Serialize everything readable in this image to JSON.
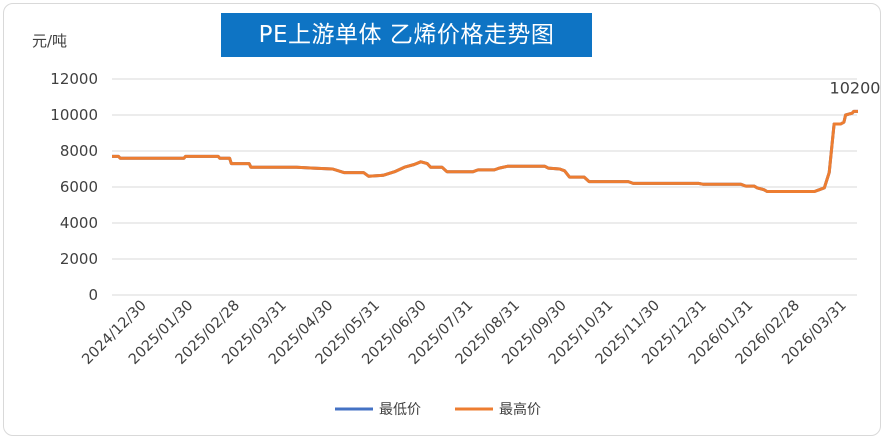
{
  "chart_data": {
    "type": "line",
    "title": "PE上游单体  乙烯价格走势图",
    "ylabel": "元/吨",
    "xlabel": "",
    "ylim": [
      0,
      12000
    ],
    "yticks": [
      0,
      2000,
      4000,
      6000,
      8000,
      10000,
      12000
    ],
    "ytick_labels": [
      "0",
      "2000",
      "4000",
      "6000",
      "8000",
      "10000",
      "12000"
    ],
    "x_tick_labels": [
      "2024/12/30",
      "2025/01/30",
      "2025/02/28",
      "2025/03/31",
      "2025/04/30",
      "2025/05/31",
      "2025/06/30",
      "2025/07/31",
      "2025/08/31",
      "2025/09/30",
      "2025/10/31",
      "2025/11/30",
      "2025/12/31",
      "2026/01/31",
      "2026/02/28",
      "2026/03/31"
    ],
    "xlim": [
      "2024-12-30",
      "2026-03-31"
    ],
    "grid": "horizontal",
    "legend_position": "bottom",
    "series": [
      {
        "name": "最低价",
        "color": "#4472c4",
        "points": [
          [
            "2024-12-30",
            7700
          ],
          [
            "2025-01-03",
            7700
          ],
          [
            "2025-01-04",
            7600
          ],
          [
            "2025-02-12",
            7600
          ],
          [
            "2025-02-13",
            7700
          ],
          [
            "2025-03-05",
            7700
          ],
          [
            "2025-03-06",
            7600
          ],
          [
            "2025-03-12",
            7600
          ],
          [
            "2025-03-13",
            7300
          ],
          [
            "2025-03-24",
            7300
          ],
          [
            "2025-03-25",
            7100
          ],
          [
            "2025-04-22",
            7100
          ],
          [
            "2025-05-02",
            7050
          ],
          [
            "2025-05-14",
            7000
          ],
          [
            "2025-05-21",
            6800
          ],
          [
            "2025-06-02",
            6800
          ],
          [
            "2025-06-05",
            6600
          ],
          [
            "2025-06-14",
            6650
          ],
          [
            "2025-06-21",
            6850
          ],
          [
            "2025-06-27",
            7100
          ],
          [
            "2025-07-03",
            7250
          ],
          [
            "2025-07-07",
            7400
          ],
          [
            "2025-07-11",
            7300
          ],
          [
            "2025-07-13",
            7100
          ],
          [
            "2025-07-20",
            7100
          ],
          [
            "2025-07-23",
            6850
          ],
          [
            "2025-08-08",
            6850
          ],
          [
            "2025-08-11",
            6950
          ],
          [
            "2025-08-21",
            6950
          ],
          [
            "2025-08-24",
            7050
          ],
          [
            "2025-08-29",
            7150
          ],
          [
            "2025-09-21",
            7150
          ],
          [
            "2025-09-23",
            7050
          ],
          [
            "2025-09-30",
            7000
          ],
          [
            "2025-10-03",
            6900
          ],
          [
            "2025-10-06",
            6550
          ],
          [
            "2025-10-15",
            6550
          ],
          [
            "2025-10-18",
            6300
          ],
          [
            "2025-11-11",
            6300
          ],
          [
            "2025-11-14",
            6200
          ],
          [
            "2025-12-24",
            6200
          ],
          [
            "2025-12-27",
            6150
          ],
          [
            "2026-01-19",
            6150
          ],
          [
            "2026-01-22",
            6050
          ],
          [
            "2026-01-27",
            6050
          ],
          [
            "2026-01-29",
            5950
          ],
          [
            "2026-02-02",
            5850
          ],
          [
            "2026-02-04",
            5750
          ],
          [
            "2026-03-05",
            5750
          ],
          [
            "2026-03-08",
            5850
          ],
          [
            "2026-03-11",
            5950
          ],
          [
            "2026-03-14",
            6800
          ],
          [
            "2026-03-17",
            9500
          ],
          [
            "2026-03-21",
            9500
          ],
          [
            "2026-03-23",
            9600
          ],
          [
            "2026-03-24",
            10000
          ],
          [
            "2026-03-28",
            10100
          ],
          [
            "2026-03-29",
            10200
          ],
          [
            "2026-04-05",
            10200
          ]
        ]
      },
      {
        "name": "最高价",
        "color": "#ed7d31",
        "points": [
          [
            "2024-12-30",
            7700
          ],
          [
            "2025-01-03",
            7700
          ],
          [
            "2025-01-04",
            7600
          ],
          [
            "2025-02-12",
            7600
          ],
          [
            "2025-02-13",
            7700
          ],
          [
            "2025-03-05",
            7700
          ],
          [
            "2025-03-06",
            7600
          ],
          [
            "2025-03-12",
            7600
          ],
          [
            "2025-03-13",
            7300
          ],
          [
            "2025-03-24",
            7300
          ],
          [
            "2025-03-25",
            7100
          ],
          [
            "2025-04-22",
            7100
          ],
          [
            "2025-05-02",
            7050
          ],
          [
            "2025-05-14",
            7000
          ],
          [
            "2025-05-21",
            6800
          ],
          [
            "2025-06-02",
            6800
          ],
          [
            "2025-06-05",
            6600
          ],
          [
            "2025-06-14",
            6650
          ],
          [
            "2025-06-21",
            6850
          ],
          [
            "2025-06-27",
            7100
          ],
          [
            "2025-07-03",
            7250
          ],
          [
            "2025-07-07",
            7400
          ],
          [
            "2025-07-11",
            7300
          ],
          [
            "2025-07-13",
            7100
          ],
          [
            "2025-07-20",
            7100
          ],
          [
            "2025-07-23",
            6850
          ],
          [
            "2025-08-08",
            6850
          ],
          [
            "2025-08-11",
            6950
          ],
          [
            "2025-08-21",
            6950
          ],
          [
            "2025-08-24",
            7050
          ],
          [
            "2025-08-29",
            7150
          ],
          [
            "2025-09-21",
            7150
          ],
          [
            "2025-09-23",
            7050
          ],
          [
            "2025-09-30",
            7000
          ],
          [
            "2025-10-03",
            6900
          ],
          [
            "2025-10-06",
            6550
          ],
          [
            "2025-10-15",
            6550
          ],
          [
            "2025-10-18",
            6300
          ],
          [
            "2025-11-11",
            6300
          ],
          [
            "2025-11-14",
            6200
          ],
          [
            "2025-12-24",
            6200
          ],
          [
            "2025-12-27",
            6150
          ],
          [
            "2026-01-19",
            6150
          ],
          [
            "2026-01-22",
            6050
          ],
          [
            "2026-01-27",
            6050
          ],
          [
            "2026-01-29",
            5950
          ],
          [
            "2026-02-02",
            5850
          ],
          [
            "2026-02-04",
            5750
          ],
          [
            "2026-03-05",
            5750
          ],
          [
            "2026-03-08",
            5850
          ],
          [
            "2026-03-11",
            5950
          ],
          [
            "2026-03-14",
            6800
          ],
          [
            "2026-03-17",
            9500
          ],
          [
            "2026-03-21",
            9500
          ],
          [
            "2026-03-23",
            9600
          ],
          [
            "2026-03-24",
            10000
          ],
          [
            "2026-03-28",
            10100
          ],
          [
            "2026-03-29",
            10200
          ],
          [
            "2026-04-05",
            10200
          ]
        ]
      }
    ],
    "annotations": [
      {
        "text": "10200",
        "x": "2026-03-31",
        "y": 10200
      }
    ]
  }
}
